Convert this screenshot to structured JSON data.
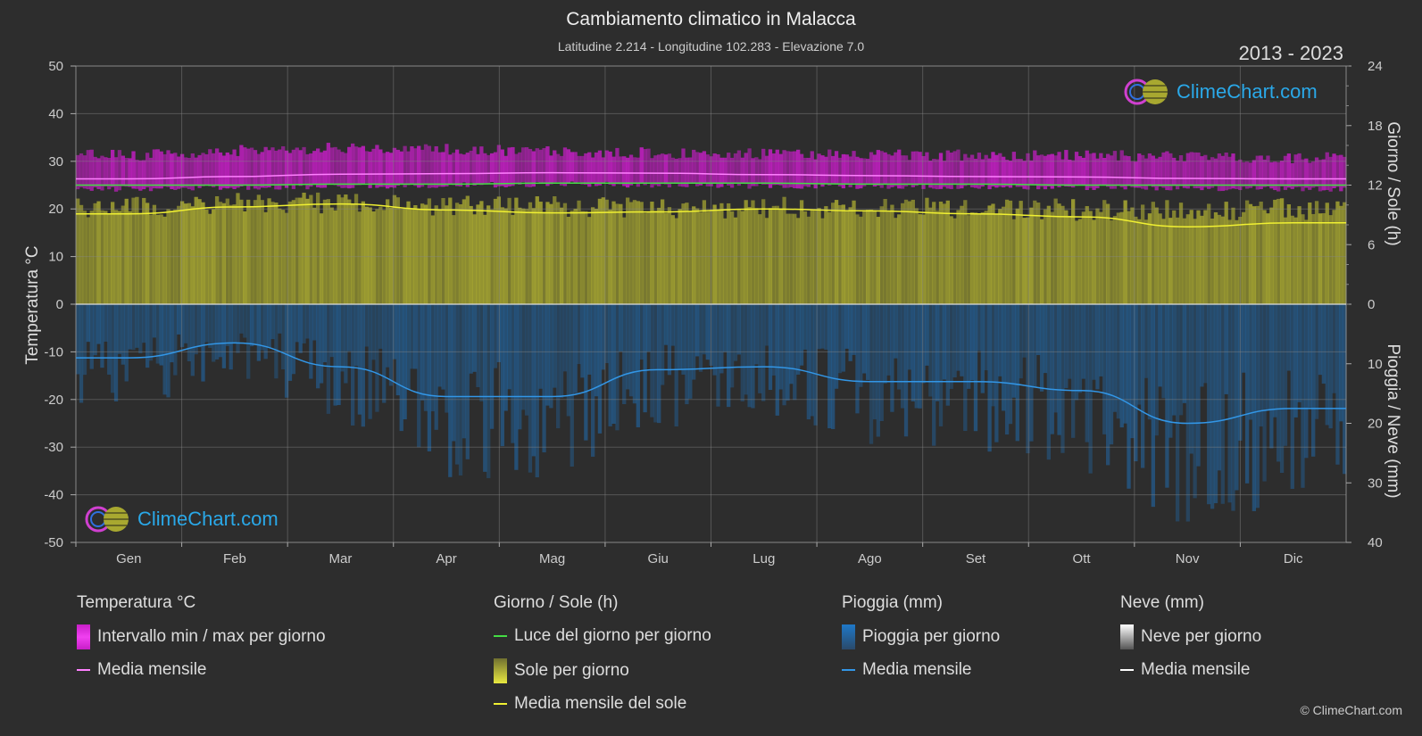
{
  "header": {
    "title": "Cambiamento climatico in Malacca",
    "subtitle": "Latitudine 2.214 - Longitudine 102.283 - Elevazione 7.0",
    "year_range": "2013 - 2023"
  },
  "axes": {
    "left_label": "Temperatura °C",
    "right_top_label": "Giorno / Sole (h)",
    "right_bottom_label": "Pioggia / Neve (mm)",
    "left_ticks": [
      "50",
      "40",
      "30",
      "20",
      "10",
      "0",
      "-10",
      "-20",
      "-30",
      "-40",
      "-50"
    ],
    "right_top_ticks": [
      "24",
      "18",
      "12",
      "6",
      "0"
    ],
    "right_bottom_ticks": [
      "10",
      "20",
      "30",
      "40"
    ]
  },
  "legend": {
    "temperature": {
      "heading": "Temperatura °C",
      "range_label": "Intervallo min / max per giorno",
      "mean_label": "Media mensile"
    },
    "sun": {
      "heading": "Giorno / Sole (h)",
      "daylight_label": "Luce del giorno per giorno",
      "sun_label": "Sole per giorno",
      "mean_label": "Media mensile del sole"
    },
    "rain": {
      "heading": "Pioggia (mm)",
      "rain_label": "Pioggia per giorno",
      "mean_label": "Media mensile"
    },
    "snow": {
      "heading": "Neve (mm)",
      "snow_label": "Neve per giorno",
      "mean_label": "Media mensile"
    }
  },
  "logo": {
    "text": "ClimeChart.com"
  },
  "copyright": "© ClimeChart.com",
  "colors": {
    "background": "#2d2d2d",
    "temp_range": "#c81ec8",
    "temp_mean": "#ff80ff",
    "daylight": "#44dd44",
    "sunshine": "#b4b432",
    "sun_mean": "#f0f032",
    "rain": "#1e78c8",
    "rain_mean": "#3296e6",
    "snow_mean": "#ffffff",
    "logo_text": "#2aa8e8"
  },
  "chart_data": {
    "type": "area",
    "categories": [
      "Gen",
      "Feb",
      "Mar",
      "Apr",
      "Mag",
      "Giu",
      "Lug",
      "Ago",
      "Set",
      "Ott",
      "Nov",
      "Dic"
    ],
    "temperature_axis": {
      "ylim": [
        -50,
        50
      ],
      "unit": "°C"
    },
    "sun_axis": {
      "ylim": [
        0,
        24
      ],
      "unit": "h"
    },
    "precip_axis": {
      "ylim": [
        0,
        40
      ],
      "unit": "mm",
      "inverted": true
    },
    "series": [
      {
        "name": "Intervallo min / max per giorno",
        "kind": "band",
        "axis": "temperature",
        "low": [
          24.2,
          24.5,
          24.8,
          25.0,
          25.2,
          25.0,
          24.8,
          24.8,
          24.7,
          24.5,
          24.3,
          24.2
        ],
        "high": [
          30.8,
          31.8,
          32.3,
          32.0,
          31.6,
          31.3,
          31.0,
          30.9,
          30.8,
          30.8,
          30.5,
          30.3
        ]
      },
      {
        "name": "Media mensile",
        "kind": "line",
        "axis": "temperature",
        "values": [
          26.3,
          26.8,
          27.3,
          27.4,
          27.6,
          27.5,
          27.2,
          27.0,
          26.8,
          26.7,
          26.4,
          26.3
        ]
      },
      {
        "name": "Luce del giorno per giorno",
        "kind": "line",
        "axis": "sun",
        "values": [
          12.0,
          12.0,
          12.1,
          12.1,
          12.2,
          12.2,
          12.2,
          12.1,
          12.1,
          12.0,
          12.0,
          12.0
        ]
      },
      {
        "name": "Sole per giorno",
        "kind": "area",
        "axis": "sun",
        "values": [
          10.9,
          11.2,
          11.3,
          11.0,
          10.9,
          10.7,
          10.8,
          10.9,
          10.8,
          10.6,
          10.6,
          10.7
        ]
      },
      {
        "name": "Media mensile del sole",
        "kind": "line",
        "axis": "sun",
        "values": [
          9.1,
          9.8,
          10.1,
          9.5,
          9.2,
          9.3,
          9.6,
          9.4,
          9.1,
          8.8,
          7.8,
          8.2
        ]
      },
      {
        "name": "Pioggia per giorno",
        "kind": "area",
        "axis": "precip",
        "values": [
          9.5,
          6.5,
          10.5,
          15.5,
          15.5,
          11.0,
          10.5,
          13.0,
          13.0,
          14.5,
          20.0,
          17.5
        ]
      },
      {
        "name": "Media mensile",
        "kind": "line",
        "axis": "precip",
        "values": [
          9.0,
          6.5,
          10.5,
          15.5,
          15.5,
          11.0,
          10.5,
          13.0,
          13.0,
          14.5,
          20.0,
          17.5
        ]
      }
    ]
  }
}
